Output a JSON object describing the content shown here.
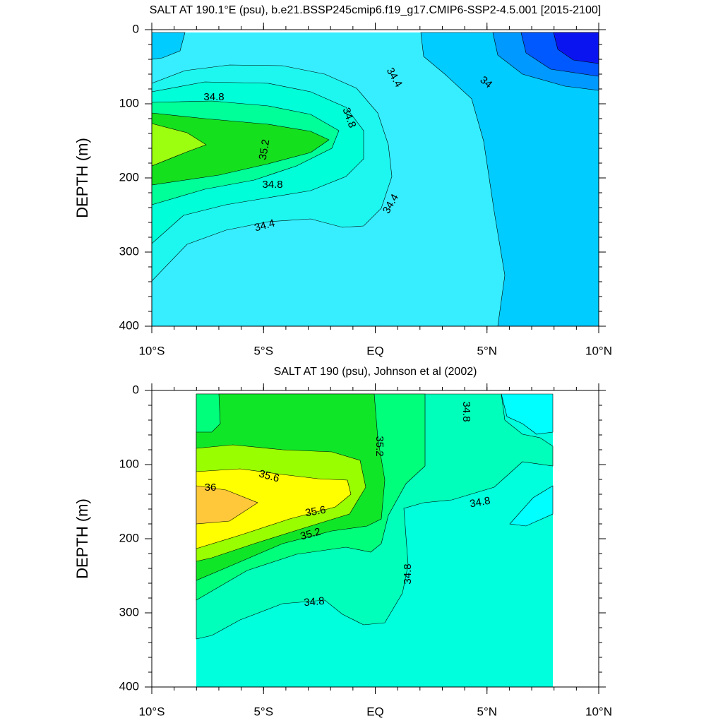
{
  "chart_data": [
    {
      "type": "contour",
      "title": "SALT AT 190.1°E (psu), b.e21.BSSP245cmip6.f19_g17.CMIP6-SSP2-4.5.001 [2015-2100]",
      "ylabel": "DEPTH (m)",
      "xlim": [
        -10,
        10
      ],
      "xticks": [
        {
          "value": -10,
          "label": "10°S"
        },
        {
          "value": -5,
          "label": "5°S"
        },
        {
          "value": 0,
          "label": "EQ"
        },
        {
          "value": 5,
          "label": "5°N"
        },
        {
          "value": 10,
          "label": "10°N"
        }
      ],
      "ylim": [
        0,
        400
      ],
      "yticks": [
        0,
        100,
        200,
        300,
        400
      ],
      "levels": [
        33.6,
        33.8,
        34.0,
        34.2,
        34.4,
        34.6,
        34.8,
        35.0,
        35.2,
        35.4
      ],
      "colors": [
        "#0a14f0",
        "#0058ff",
        "#0099ff",
        "#00ccff",
        "#36eeff",
        "#1ef6f0",
        "#00ffd8",
        "#00ff99",
        "#14e01e",
        "#9cff10"
      ],
      "contour_labels": [
        34.4,
        34,
        34.8,
        34.8,
        35.2,
        34.8,
        34.4,
        34.4
      ]
    },
    {
      "type": "contour",
      "title": "SALT AT 190 (psu), Johnson et al (2002)",
      "ylabel": "DEPTH (m)",
      "xlim": [
        -10,
        10
      ],
      "xticks": [
        {
          "value": -10,
          "label": "10°S"
        },
        {
          "value": -5,
          "label": "5°S"
        },
        {
          "value": 0,
          "label": "EQ"
        },
        {
          "value": 5,
          "label": "5°N"
        },
        {
          "value": 10,
          "label": "10°N"
        }
      ],
      "ylim": [
        0,
        400
      ],
      "yticks": [
        0,
        100,
        200,
        300,
        400
      ],
      "levels": [
        34.4,
        34.6,
        34.8,
        35.0,
        35.2,
        35.4,
        35.6,
        36.0
      ],
      "colors": [
        "#00ffff",
        "#00ffdc",
        "#00ffbb",
        "#00ff7a",
        "#10e628",
        "#99ff00",
        "#ffff00",
        "#ffc83a"
      ],
      "contour_labels": [
        34.8,
        35.2,
        35.6,
        36,
        35.6,
        35.2,
        34.8,
        34.8,
        34.8
      ]
    }
  ]
}
